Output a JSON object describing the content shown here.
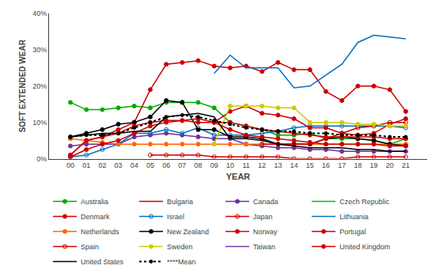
{
  "chart_data": {
    "type": "line",
    "xlabel": "YEAR",
    "ylabel": "SOFT EXTENDED WEAR",
    "categories": [
      "00",
      "01",
      "02",
      "03",
      "04",
      "05",
      "06",
      "07",
      "08",
      "09",
      "10",
      "11",
      "12",
      "13",
      "14",
      "15",
      "16",
      "17",
      "18",
      "19",
      "20",
      "21"
    ],
    "ylim": [
      0,
      0.4
    ],
    "yticks": [
      {
        "value": 0,
        "label": "0%"
      },
      {
        "value": 0.1,
        "label": "10%"
      },
      {
        "value": 0.2,
        "label": "20%"
      },
      {
        "value": 0.3,
        "label": "30%"
      },
      {
        "value": 0.4,
        "label": "40%"
      }
    ],
    "grid": false,
    "legend": "bottom",
    "series": [
      {
        "name": "Australia",
        "color": "#00aa00",
        "marker": "circle",
        "line_style": "solid",
        "values": [
          0.155,
          0.135,
          0.135,
          0.14,
          0.145,
          0.14,
          0.155,
          0.155,
          0.155,
          0.14,
          0.1,
          0.09,
          0.08,
          0.065,
          0.065,
          0.07,
          0.055,
          0.055,
          0.055,
          0.05,
          0.04,
          0.055
        ]
      },
      {
        "name": "Bulgaria",
        "color": "#cc0000",
        "line_style": "solid",
        "values": [
          null,
          null,
          null,
          null,
          null,
          null,
          null,
          null,
          null,
          null,
          null,
          null,
          null,
          null,
          null,
          null,
          null,
          null,
          null,
          null,
          null,
          null
        ]
      },
      {
        "name": "Canada",
        "color": "#7030a0",
        "marker": "circle",
        "line_style": "solid",
        "values": [
          0.035,
          0.04,
          0.04,
          0.04,
          0.06,
          0.065,
          0.07,
          0.065,
          0.06,
          0.055,
          0.055,
          0.04,
          0.035,
          0.03,
          0.03,
          0.025,
          0.025,
          0.02,
          0.02,
          0.02,
          0.02,
          0.02
        ]
      },
      {
        "name": "Czech Republic",
        "color": "#00bb00",
        "line_style": "solid",
        "values": [
          null,
          null,
          null,
          null,
          null,
          null,
          null,
          null,
          null,
          null,
          null,
          null,
          null,
          null,
          null,
          null,
          null,
          null,
          null,
          null,
          null,
          null
        ]
      },
      {
        "name": "Denmark",
        "color": "#cc0000",
        "marker": "circle",
        "line_style": "solid",
        "values": [
          0.01,
          0.05,
          0.06,
          0.08,
          0.1,
          0.19,
          0.26,
          0.265,
          0.27,
          0.255,
          0.25,
          0.255,
          0.24,
          0.265,
          0.245,
          0.245,
          0.185,
          0.16,
          0.2,
          0.2,
          0.19,
          0.13
        ]
      },
      {
        "name": "Israel",
        "color": "#0070c0",
        "marker": "circle-open",
        "line_style": "solid",
        "values": [
          0.005,
          0.01,
          0.025,
          0.04,
          0.07,
          0.07,
          0.08,
          0.07,
          0.085,
          0.065,
          0.065,
          0.065,
          0.07,
          0.075,
          0.085,
          0.09,
          0.09,
          0.09,
          0.09,
          0.09,
          0.09,
          0.085
        ]
      },
      {
        "name": "Japan",
        "color": "#cc0000",
        "marker": "circle-open",
        "line_style": "solid",
        "values": [
          null,
          null,
          null,
          null,
          null,
          0.01,
          0.01,
          0.01,
          0.01,
          0.005,
          0.005,
          0.005,
          0.005,
          0.005,
          0.0,
          0.0,
          0.0,
          0.0,
          0.005,
          0.005,
          0.005,
          0.005
        ]
      },
      {
        "name": "Lithuania",
        "color": "#0070c0",
        "line_style": "solid",
        "values": [
          null,
          null,
          null,
          null,
          null,
          null,
          null,
          null,
          null,
          0.235,
          0.285,
          0.25,
          0.25,
          0.25,
          0.195,
          0.2,
          0.23,
          0.26,
          0.32,
          0.34,
          0.335,
          0.33
        ]
      },
      {
        "name": "Netherlands",
        "color": "#ff6600",
        "marker": "circle",
        "line_style": "solid",
        "values": [
          0.055,
          0.05,
          0.045,
          0.04,
          0.04,
          0.04,
          0.04,
          0.04,
          0.04,
          0.04,
          0.04,
          0.04,
          0.04,
          0.04,
          0.04,
          0.04,
          0.04,
          0.04,
          0.04,
          0.04,
          0.04,
          0.04
        ]
      },
      {
        "name": "New Zealand",
        "color": "#000000",
        "marker": "circle",
        "line_style": "solid",
        "values": [
          0.06,
          0.07,
          0.08,
          0.095,
          0.1,
          0.115,
          0.16,
          0.155,
          0.08,
          0.08,
          0.06,
          0.06,
          0.055,
          0.04,
          0.04,
          0.04,
          0.055,
          0.06,
          0.055,
          0.05,
          0.04,
          0.035
        ]
      },
      {
        "name": "Norway",
        "color": "#cc0000",
        "marker": "circle",
        "line_style": "solid",
        "values": [
          0.01,
          0.05,
          0.06,
          0.07,
          0.09,
          0.1,
          0.105,
          0.105,
          0.11,
          0.1,
          0.1,
          0.09,
          0.08,
          0.075,
          0.07,
          0.065,
          0.06,
          0.06,
          0.06,
          0.06,
          0.055,
          0.055
        ]
      },
      {
        "name": "Portugal",
        "color": "#cc0000",
        "marker": "circle",
        "line_style": "solid",
        "values": [
          null,
          null,
          null,
          null,
          null,
          null,
          null,
          null,
          null,
          0.1,
          0.13,
          0.145,
          0.125,
          0.12,
          0.11,
          0.085,
          0.085,
          0.07,
          0.065,
          0.07,
          0.095,
          0.11
        ]
      },
      {
        "name": "Spain",
        "color": "#cc0000",
        "marker": "circle-open",
        "line_style": "solid",
        "values": [
          null,
          null,
          null,
          null,
          null,
          null,
          null,
          null,
          null,
          null,
          null,
          null,
          0.04,
          0.04,
          0.04,
          0.04,
          0.055,
          0.07,
          0.085,
          0.09,
          0.1,
          0.1
        ]
      },
      {
        "name": "Sweden",
        "color": "#cccc00",
        "marker": "circle",
        "line_style": "solid",
        "values": [
          null,
          null,
          null,
          null,
          null,
          null,
          null,
          null,
          null,
          0.04,
          0.145,
          0.145,
          0.145,
          0.14,
          0.14,
          0.1,
          0.1,
          0.1,
          0.095,
          0.095,
          0.09,
          0.09
        ]
      },
      {
        "name": "Taiwan",
        "color": "#8030b0",
        "line_style": "solid",
        "values": [
          null,
          null,
          null,
          null,
          null,
          null,
          null,
          null,
          null,
          null,
          null,
          null,
          null,
          null,
          null,
          null,
          null,
          null,
          null,
          null,
          null,
          null
        ]
      },
      {
        "name": "United Kingdom",
        "color": "#cc0000",
        "marker": "circle",
        "line_style": "solid",
        "values": [
          0.005,
          0.025,
          0.04,
          0.05,
          0.07,
          0.09,
          0.1,
          0.105,
          0.1,
          0.1,
          0.08,
          0.065,
          0.06,
          0.055,
          0.05,
          0.045,
          0.04,
          0.04,
          0.04,
          0.04,
          0.035,
          0.035
        ]
      },
      {
        "name": "United States",
        "color": "#000000",
        "line_style": "solid",
        "values": [
          0.06,
          0.065,
          0.07,
          0.07,
          0.075,
          0.075,
          0.115,
          0.12,
          0.125,
          0.115,
          0.055,
          0.055,
          0.05,
          0.04,
          0.035,
          0.03,
          0.03,
          0.03,
          0.025,
          0.025,
          0.02,
          0.02
        ]
      },
      {
        "name": "****Mean",
        "color": "#000000",
        "marker": "point",
        "line_style": "dotted",
        "values": [
          0.06,
          0.065,
          0.065,
          0.07,
          0.085,
          0.1,
          0.115,
          0.12,
          0.115,
          0.105,
          0.095,
          0.085,
          0.08,
          0.075,
          0.075,
          0.07,
          0.07,
          0.065,
          0.065,
          0.065,
          0.06,
          0.06
        ]
      }
    ]
  }
}
